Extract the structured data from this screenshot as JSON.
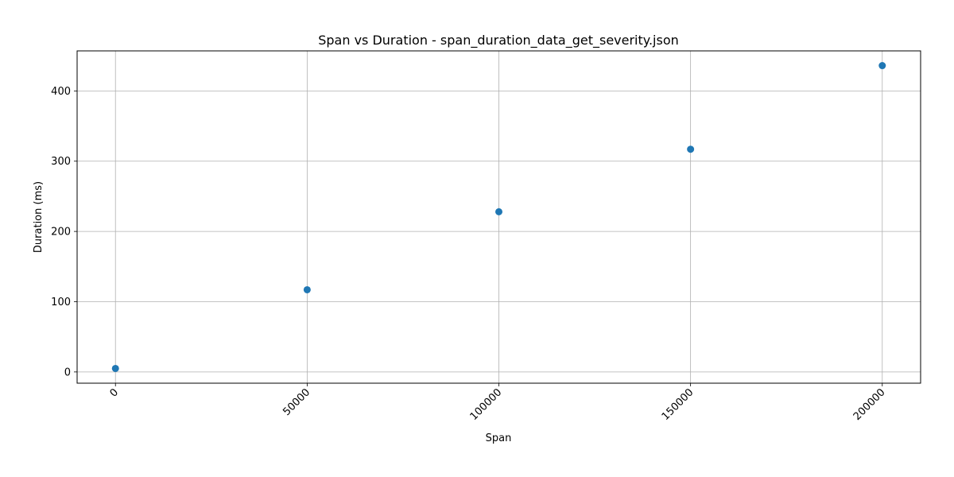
{
  "chart_data": {
    "type": "scatter",
    "title": "Span vs Duration - span_duration_data_get_severity.json",
    "xlabel": "Span",
    "ylabel": "Duration (ms)",
    "x": [
      0,
      50000,
      100000,
      150000,
      200000
    ],
    "y": [
      5,
      117,
      228,
      317,
      436
    ],
    "xlim": [
      -10000,
      210000
    ],
    "ylim": [
      -16,
      457
    ],
    "xticks": [
      0,
      50000,
      100000,
      150000,
      200000
    ],
    "yticks": [
      0,
      100,
      200,
      300,
      400
    ],
    "xtick_labels": [
      "0",
      "50000",
      "100000",
      "150000",
      "200000"
    ],
    "ytick_labels": [
      "0",
      "100",
      "200",
      "300",
      "400"
    ],
    "xtick_rotation_deg": 45,
    "grid": true,
    "marker_color": "#1f77b4"
  }
}
